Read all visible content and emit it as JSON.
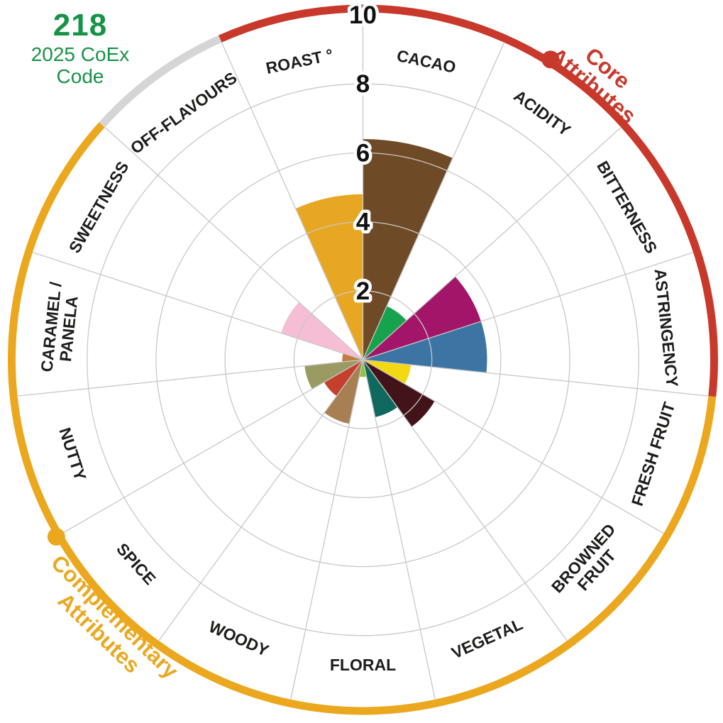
{
  "header": {
    "code": "218",
    "code_label": "2025 CoEx Code",
    "code_color": "#169347"
  },
  "chart_data": {
    "type": "polar_bar",
    "axis": {
      "rmax": 10,
      "ticks": [
        2,
        4,
        6,
        8,
        10
      ],
      "grid": true
    },
    "sector_angle_deg": 24,
    "start_angle_deg": 0,
    "categories": [
      "CACAO",
      "ACIDITY",
      "BITTERNESS",
      "ASTRINGENCY",
      "FRESH FRUIT",
      "BROWNED FRUIT",
      "VEGETAL",
      "FLORAL",
      "WOODY",
      "SPICE",
      "NUTTY",
      "CARAMEL / PANELA",
      "SWEETNESS",
      "OFF-FLAVOURS",
      "ROAST °"
    ],
    "category_lines": [
      [
        "CACAO"
      ],
      [
        "ACIDITY"
      ],
      [
        "BITTERNESS"
      ],
      [
        "ASTRINGENCY"
      ],
      [
        "FRESH FRUIT"
      ],
      [
        "BROWNED",
        "FRUIT"
      ],
      [
        "VEGETAL"
      ],
      [
        "FLORAL"
      ],
      [
        "WOODY"
      ],
      [
        "SPICE"
      ],
      [
        "NUTTY"
      ],
      [
        "CARAMEL /",
        "PANELA"
      ],
      [
        "SWEETNESS"
      ],
      [
        "OFF-FLAVOURS"
      ],
      [
        "ROAST °"
      ]
    ],
    "values": [
      6.4,
      1.7,
      3.6,
      3.6,
      1.4,
      2.4,
      1.7,
      0.5,
      1.9,
      1.3,
      1.7,
      0.6,
      2.5,
      0,
      4.8
    ],
    "colors": [
      "#6F4A26",
      "#17A24E",
      "#A31568",
      "#3C74A3",
      "#F4D812",
      "#421419",
      "#10695E",
      "#8CC63E",
      "#A87F53",
      "#C5402C",
      "#9A9B62",
      "#C17C3E",
      "#F6BED5",
      "#D9D9D9",
      "#E8A722"
    ],
    "grid_color": "#C8C8C8",
    "label_color": "#1D1D1B",
    "groups": [
      {
        "name": "Core Attributes",
        "label_lines": [
          "Core",
          "Attributes"
        ],
        "color": "#C8392B",
        "start_deg": 336,
        "end_deg": 456,
        "label_deg": 40,
        "dot_deg": 32,
        "covers": [
          "ROAST °",
          "CACAO",
          "ACIDITY",
          "BITTERNESS",
          "ASTRINGENCY"
        ]
      },
      {
        "name": "Complementary Attributes",
        "label_lines": [
          "Complementary",
          "Attributes"
        ],
        "color": "#EBA81F",
        "start_deg": 96,
        "end_deg": 312,
        "label_deg": 224,
        "dot_deg": 240,
        "covers": [
          "FRESH FRUIT",
          "BROWNED FRUIT",
          "VEGETAL",
          "FLORAL",
          "WOODY",
          "SPICE",
          "NUTTY",
          "CARAMEL / PANELA",
          "SWEETNESS"
        ]
      },
      {
        "name": "Off-Flavours",
        "label_lines": [],
        "color": "#D5D5D5",
        "start_deg": 312,
        "end_deg": 336,
        "label_deg": null,
        "dot_deg": null,
        "covers": [
          "OFF-FLAVOURS"
        ]
      }
    ]
  }
}
